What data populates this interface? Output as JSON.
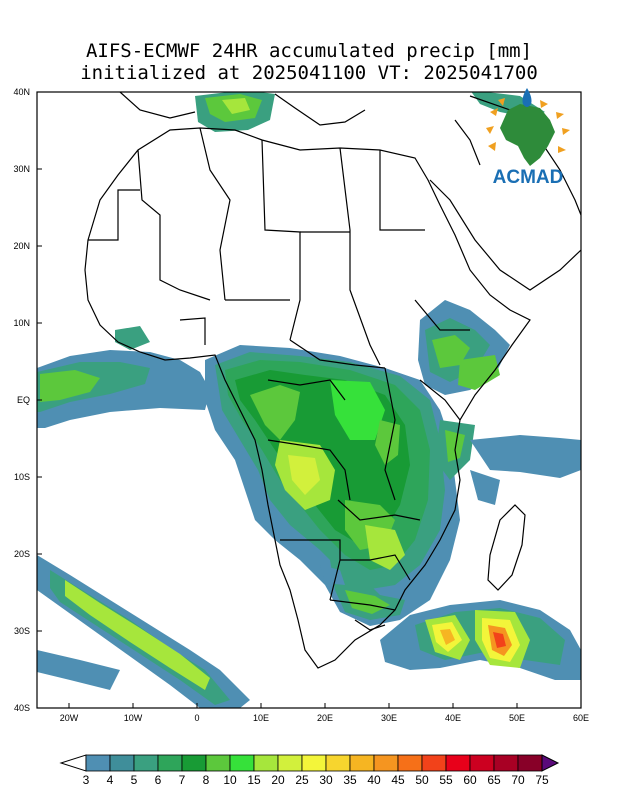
{
  "title": {
    "line1": "AIFS-ECMWF 24HR accumulated precip [mm]",
    "line2": "initialized at 2025041100 VT: 2025041700"
  },
  "map": {
    "region": "Africa",
    "lon_range": [
      -25,
      60
    ],
    "lat_range": [
      -40,
      40
    ],
    "lat_ticks": [
      "40N",
      "30N",
      "20N",
      "10N",
      "EQ",
      "10S",
      "20S",
      "30S",
      "40S"
    ],
    "lon_ticks": [
      "20W",
      "10W",
      "0",
      "10E",
      "20E",
      "30E",
      "40E",
      "50E",
      "60E"
    ],
    "ocean_color": "#ffffff",
    "boundary_color": "#000000"
  },
  "logo": {
    "text": "ACMAD",
    "color": "#1a6fb4"
  },
  "colorbar": {
    "labels": [
      "3",
      "4",
      "5",
      "6",
      "7",
      "8",
      "10",
      "15",
      "20",
      "25",
      "30",
      "35",
      "40",
      "45",
      "50",
      "55",
      "60",
      "65",
      "70",
      "75"
    ],
    "colors": [
      "#4f8fb3",
      "#3f8e9a",
      "#3aa080",
      "#2ea55a",
      "#189b35",
      "#5cc83c",
      "#36e13a",
      "#a6e63c",
      "#d2f03c",
      "#f3f53a",
      "#f7d52e",
      "#f6b522",
      "#f59520",
      "#f67018",
      "#f2421a",
      "#e8001a",
      "#cc0020",
      "#a80024",
      "#880028",
      "#5b0026"
    ],
    "under_color": "#ffffff",
    "over_color": "#5a0a7a"
  }
}
